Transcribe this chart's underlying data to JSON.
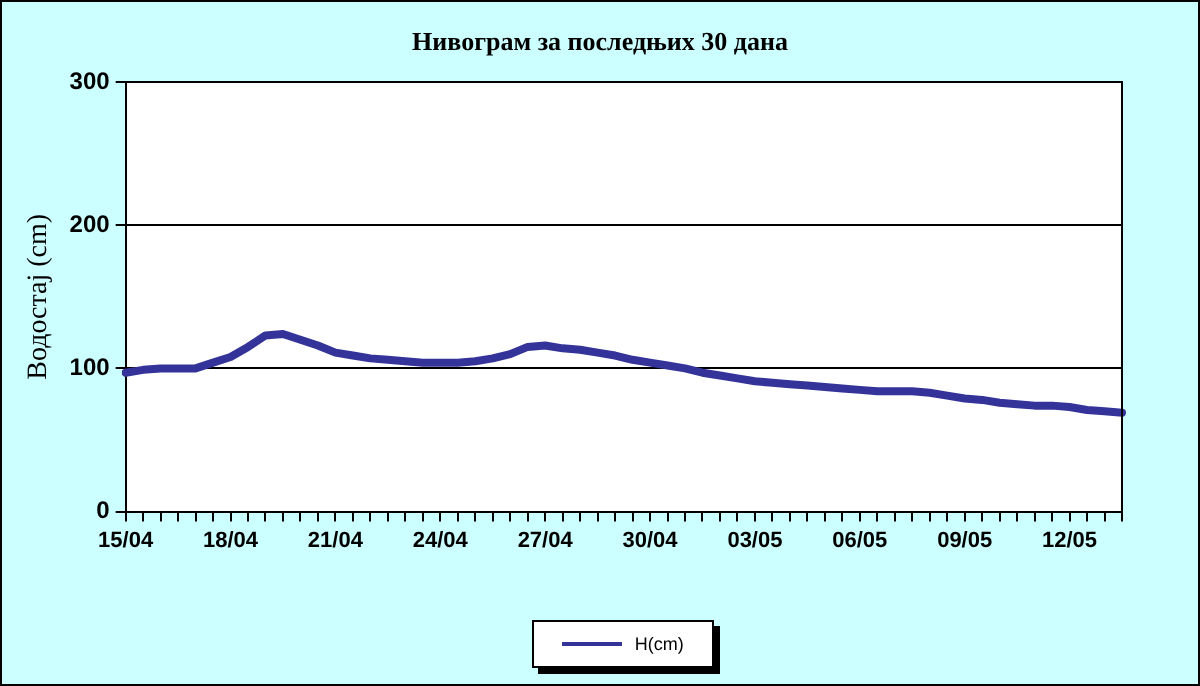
{
  "chart_data": {
    "type": "line",
    "title": "Нивограм за последњих 30 дана",
    "ylabel": "Водостај (cm)",
    "categories": [
      "15/04",
      null,
      null,
      null,
      null,
      null,
      "18/04",
      null,
      null,
      null,
      null,
      null,
      "21/04",
      null,
      null,
      null,
      null,
      null,
      "24/04",
      null,
      null,
      null,
      null,
      null,
      "27/04",
      null,
      null,
      null,
      null,
      null,
      "30/04",
      null,
      null,
      null,
      null,
      null,
      "03/05",
      null,
      null,
      null,
      null,
      null,
      "06/05",
      null,
      null,
      null,
      null,
      null,
      "09/05",
      null,
      null,
      null,
      null,
      null,
      "12/05",
      null,
      null,
      null
    ],
    "series": [
      {
        "name": "H(cm)",
        "color": "#333399",
        "values": [
          97,
          99,
          100,
          100,
          100,
          104,
          108,
          115,
          123,
          124,
          120,
          116,
          111,
          109,
          107,
          106,
          105,
          104,
          104,
          104,
          105,
          107,
          110,
          115,
          116,
          114,
          113,
          111,
          109,
          106,
          104,
          102,
          100,
          97,
          95,
          93,
          91,
          90,
          89,
          88,
          87,
          86,
          85,
          84,
          84,
          84,
          83,
          81,
          79,
          78,
          76,
          75,
          74,
          74,
          73,
          71,
          70,
          69
        ]
      }
    ],
    "ylim": [
      0,
      300
    ],
    "yticks": [
      0,
      100,
      200,
      300
    ],
    "grid": "y",
    "legend": "bottom",
    "marker": "none",
    "line_style": "solid"
  }
}
